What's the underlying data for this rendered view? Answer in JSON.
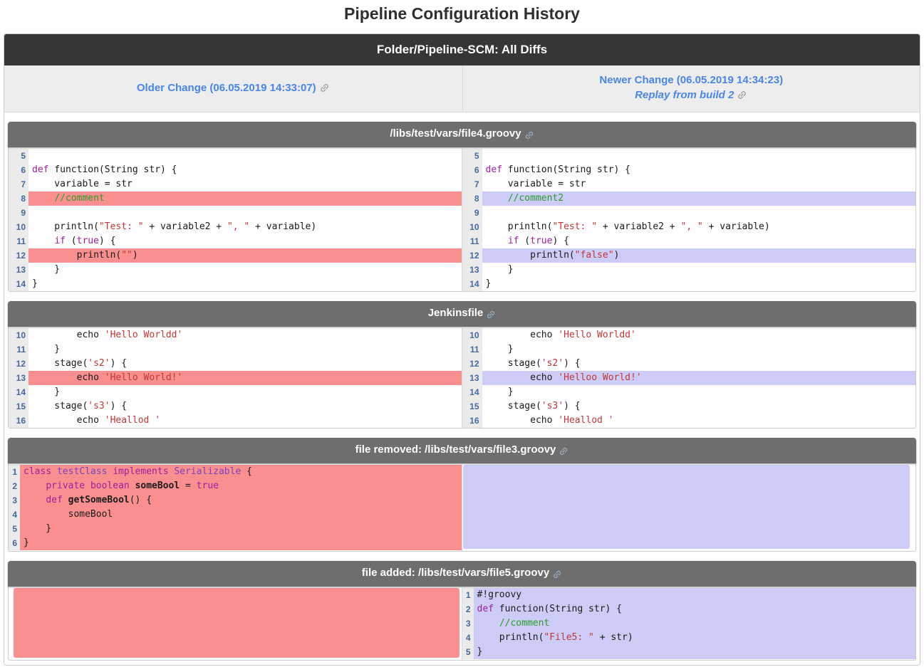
{
  "page": {
    "title": "Pipeline Configuration History"
  },
  "header": {
    "title": "Folder/Pipeline-SCM: All Diffs"
  },
  "nav": {
    "older": {
      "label": "Older Change (06.05.2019 14:33:07)",
      "icon": "link-icon"
    },
    "newer": {
      "label": "Newer Change (06.05.2019 14:34:23)",
      "replay_label": "Replay from build 2",
      "icon": "link-icon"
    }
  },
  "colors": {
    "topbar_bg": "#363636",
    "section_header_bg": "#6e6e6e",
    "subheader_bg": "#ededed",
    "link_blue": "#4a86e8",
    "removed_highlight": "#f98f8f",
    "added_highlight": "#cdccf6",
    "gutter_bg": "#ebebeb",
    "line_number_blue": "#44699d",
    "keyword_color": "#a0209e",
    "type_color": "#7b43bd",
    "string_color": "#c13838",
    "comment_color": "#2b9c2b"
  },
  "sections": [
    {
      "title": "/libs/test/vars/file4.groovy",
      "icon": "link-icon",
      "left": {
        "type": "code",
        "rows": [
          {
            "num": 5,
            "hl": "",
            "seg": []
          },
          {
            "num": 6,
            "hl": "",
            "seg": [
              [
                "k",
                "def"
              ],
              [
                "p",
                " function(String str) {"
              ]
            ]
          },
          {
            "num": 7,
            "hl": "",
            "seg": [
              [
                "p",
                "    variable = str"
              ]
            ]
          },
          {
            "num": 8,
            "hl": "rem",
            "seg": [
              [
                "p",
                "    "
              ],
              [
                "cm",
                "//comment"
              ]
            ]
          },
          {
            "num": 9,
            "hl": "",
            "seg": []
          },
          {
            "num": 10,
            "hl": "",
            "seg": [
              [
                "p",
                "    println("
              ],
              [
                "s",
                "\"Test: \""
              ],
              [
                "p",
                " + variable2 + "
              ],
              [
                "s",
                "\", \""
              ],
              [
                "p",
                " + variable)"
              ]
            ]
          },
          {
            "num": 11,
            "hl": "",
            "seg": [
              [
                "p",
                "    "
              ],
              [
                "k",
                "if"
              ],
              [
                "p",
                " ("
              ],
              [
                "k",
                "true"
              ],
              [
                "p",
                ") {"
              ]
            ]
          },
          {
            "num": 12,
            "hl": "rem",
            "seg": [
              [
                "p",
                "        println("
              ],
              [
                "s",
                "\"\""
              ],
              [
                "p",
                ")"
              ]
            ]
          },
          {
            "num": 13,
            "hl": "",
            "seg": [
              [
                "p",
                "    }"
              ]
            ]
          },
          {
            "num": 14,
            "hl": "",
            "seg": [
              [
                "p",
                "}"
              ]
            ]
          }
        ]
      },
      "right": {
        "type": "code",
        "rows": [
          {
            "num": 5,
            "hl": "",
            "seg": []
          },
          {
            "num": 6,
            "hl": "",
            "seg": [
              [
                "k",
                "def"
              ],
              [
                "p",
                " function(String str) {"
              ]
            ]
          },
          {
            "num": 7,
            "hl": "",
            "seg": [
              [
                "p",
                "    variable = str"
              ]
            ]
          },
          {
            "num": 8,
            "hl": "add",
            "seg": [
              [
                "p",
                "    "
              ],
              [
                "cm",
                "//comment2"
              ]
            ]
          },
          {
            "num": 9,
            "hl": "",
            "seg": []
          },
          {
            "num": 10,
            "hl": "",
            "seg": [
              [
                "p",
                "    println("
              ],
              [
                "s",
                "\"Test: \""
              ],
              [
                "p",
                " + variable2 + "
              ],
              [
                "s",
                "\", \""
              ],
              [
                "p",
                " + variable)"
              ]
            ]
          },
          {
            "num": 11,
            "hl": "",
            "seg": [
              [
                "p",
                "    "
              ],
              [
                "k",
                "if"
              ],
              [
                "p",
                " ("
              ],
              [
                "k",
                "true"
              ],
              [
                "p",
                ") {"
              ]
            ]
          },
          {
            "num": 12,
            "hl": "add",
            "seg": [
              [
                "p",
                "        println("
              ],
              [
                "s",
                "\"false\""
              ],
              [
                "p",
                ")"
              ]
            ]
          },
          {
            "num": 13,
            "hl": "",
            "seg": [
              [
                "p",
                "    }"
              ]
            ]
          },
          {
            "num": 14,
            "hl": "",
            "seg": [
              [
                "p",
                "}"
              ]
            ]
          }
        ]
      }
    },
    {
      "title": "Jenkinsfile",
      "icon": "link-icon",
      "left": {
        "type": "code",
        "rows": [
          {
            "num": 10,
            "hl": "",
            "seg": [
              [
                "p",
                "        echo "
              ],
              [
                "s",
                "'Hello Worldd'"
              ]
            ]
          },
          {
            "num": 11,
            "hl": "",
            "seg": [
              [
                "p",
                "    }"
              ]
            ]
          },
          {
            "num": 12,
            "hl": "",
            "seg": [
              [
                "p",
                "    stage("
              ],
              [
                "s",
                "'s2'"
              ],
              [
                "p",
                ") {"
              ]
            ]
          },
          {
            "num": 13,
            "hl": "rem",
            "seg": [
              [
                "p",
                "        echo "
              ],
              [
                "s",
                "'Hello World!'"
              ]
            ]
          },
          {
            "num": 14,
            "hl": "",
            "seg": [
              [
                "p",
                "    }"
              ]
            ]
          },
          {
            "num": 15,
            "hl": "",
            "seg": [
              [
                "p",
                "    stage("
              ],
              [
                "s",
                "'s3'"
              ],
              [
                "p",
                ") {"
              ]
            ]
          },
          {
            "num": 16,
            "hl": "",
            "seg": [
              [
                "p",
                "        echo "
              ],
              [
                "s",
                "'Heallod '"
              ]
            ]
          }
        ]
      },
      "right": {
        "type": "code",
        "rows": [
          {
            "num": 10,
            "hl": "",
            "seg": [
              [
                "p",
                "        echo "
              ],
              [
                "s",
                "'Hello Worldd'"
              ]
            ]
          },
          {
            "num": 11,
            "hl": "",
            "seg": [
              [
                "p",
                "    }"
              ]
            ]
          },
          {
            "num": 12,
            "hl": "",
            "seg": [
              [
                "p",
                "    stage("
              ],
              [
                "s",
                "'s2'"
              ],
              [
                "p",
                ") {"
              ]
            ]
          },
          {
            "num": 13,
            "hl": "add",
            "seg": [
              [
                "p",
                "        echo "
              ],
              [
                "s",
                "'Helloo World!'"
              ]
            ]
          },
          {
            "num": 14,
            "hl": "",
            "seg": [
              [
                "p",
                "    }"
              ]
            ]
          },
          {
            "num": 15,
            "hl": "",
            "seg": [
              [
                "p",
                "    stage("
              ],
              [
                "s",
                "'s3'"
              ],
              [
                "p",
                ") {"
              ]
            ]
          },
          {
            "num": 16,
            "hl": "",
            "seg": [
              [
                "p",
                "        echo "
              ],
              [
                "s",
                "'Heallod '"
              ]
            ]
          }
        ]
      }
    },
    {
      "title": "file removed: /libs/test/vars/file3.groovy",
      "icon": "link-icon",
      "left": {
        "type": "code",
        "rows": [
          {
            "num": 1,
            "hl": "rem",
            "seg": [
              [
                "k",
                "class"
              ],
              [
                "p",
                " "
              ],
              [
                "ty",
                "testClass"
              ],
              [
                "p",
                " "
              ],
              [
                "k",
                "implements"
              ],
              [
                "p",
                " "
              ],
              [
                "ty",
                "Serializable"
              ],
              [
                "p",
                " {"
              ]
            ]
          },
          {
            "num": 2,
            "hl": "rem",
            "seg": [
              [
                "p",
                "    "
              ],
              [
                "k",
                "private"
              ],
              [
                "p",
                " "
              ],
              [
                "k",
                "boolean"
              ],
              [
                "p",
                " "
              ],
              [
                "d",
                "someBool"
              ],
              [
                "p",
                " = "
              ],
              [
                "k",
                "true"
              ]
            ]
          },
          {
            "num": 3,
            "hl": "rem",
            "seg": [
              [
                "p",
                "    "
              ],
              [
                "k",
                "def"
              ],
              [
                "p",
                " "
              ],
              [
                "d",
                "getSomeBool"
              ],
              [
                "p",
                "() {"
              ]
            ]
          },
          {
            "num": 4,
            "hl": "rem",
            "seg": [
              [
                "p",
                "        someBool"
              ]
            ]
          },
          {
            "num": 5,
            "hl": "rem",
            "seg": [
              [
                "p",
                "    }"
              ]
            ]
          },
          {
            "num": 6,
            "hl": "rem",
            "seg": [
              [
                "p",
                "}"
              ]
            ]
          }
        ]
      },
      "right": {
        "type": "block",
        "highlight": "add",
        "rows": 6
      }
    },
    {
      "title": "file added: /libs/test/vars/file5.groovy",
      "icon": "link-icon",
      "left": {
        "type": "block",
        "highlight": "rem",
        "rows": 5
      },
      "right": {
        "type": "code",
        "rows": [
          {
            "num": 1,
            "hl": "add",
            "seg": [
              [
                "p",
                "#!groovy"
              ]
            ]
          },
          {
            "num": 2,
            "hl": "add",
            "seg": [
              [
                "k",
                "def"
              ],
              [
                "p",
                " function(String str) {"
              ]
            ]
          },
          {
            "num": 3,
            "hl": "add",
            "seg": [
              [
                "p",
                "    "
              ],
              [
                "cm",
                "//comment"
              ]
            ]
          },
          {
            "num": 4,
            "hl": "add",
            "seg": [
              [
                "p",
                "    println("
              ],
              [
                "s",
                "\"File5: \""
              ],
              [
                "p",
                " + str)"
              ]
            ]
          },
          {
            "num": 5,
            "hl": "add",
            "seg": [
              [
                "p",
                "}"
              ]
            ]
          }
        ]
      }
    }
  ]
}
